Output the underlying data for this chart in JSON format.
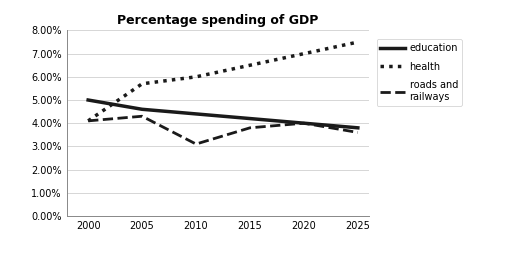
{
  "title": "Percentage spending of GDP",
  "years": [
    2000,
    2005,
    2010,
    2015,
    2020,
    2025
  ],
  "education": [
    0.05,
    0.046,
    0.044,
    0.042,
    0.04,
    0.038
  ],
  "health": [
    0.041,
    0.057,
    0.06,
    0.065,
    0.07,
    0.075
  ],
  "roads": [
    0.041,
    0.043,
    0.031,
    0.038,
    0.04,
    0.036
  ],
  "ylim": [
    0.0,
    0.08
  ],
  "yticks": [
    0.0,
    0.01,
    0.02,
    0.03,
    0.04,
    0.05,
    0.06,
    0.07,
    0.08
  ],
  "xticks": [
    2000,
    2005,
    2010,
    2015,
    2020,
    2025
  ],
  "legend_labels": [
    "education",
    "health",
    "roads and\nrailways"
  ],
  "bg_color": "#ffffff",
  "plot_bg_color": "#ffffff",
  "line_color": "#1a1a1a",
  "title_fontsize": 9,
  "education_linestyle": "-",
  "education_linewidth": 2.5,
  "health_linestyle": ":",
  "health_linewidth": 2.5,
  "roads_linestyle": "--",
  "roads_linewidth": 2.0,
  "xlim_left": 1998,
  "xlim_right": 2026
}
